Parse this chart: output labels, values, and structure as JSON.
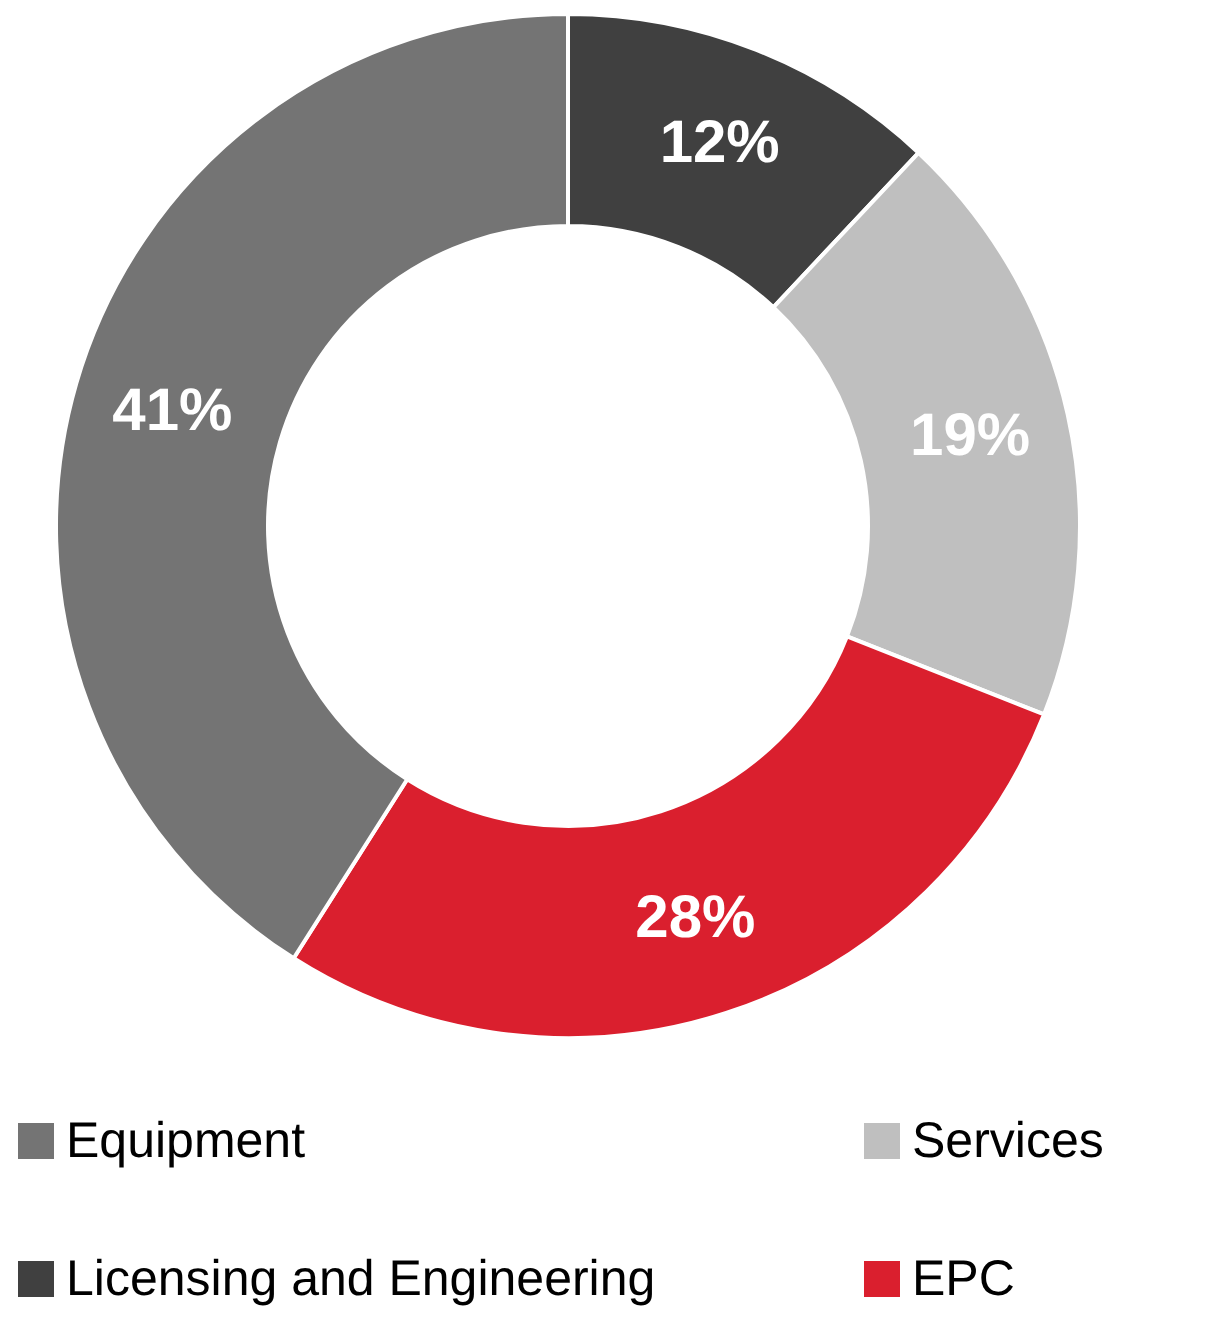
{
  "chart_data": {
    "type": "donut",
    "categories": [
      "Licensing and Engineering",
      "Services",
      "EPC",
      "Equipment"
    ],
    "values": [
      12,
      19,
      28,
      41
    ],
    "colors": [
      "#404040",
      "#bfbfbf",
      "#da1f2e",
      "#747474"
    ],
    "value_labels": [
      "12%",
      "19%",
      "28%",
      "41%"
    ],
    "legend": "bottom"
  }
}
